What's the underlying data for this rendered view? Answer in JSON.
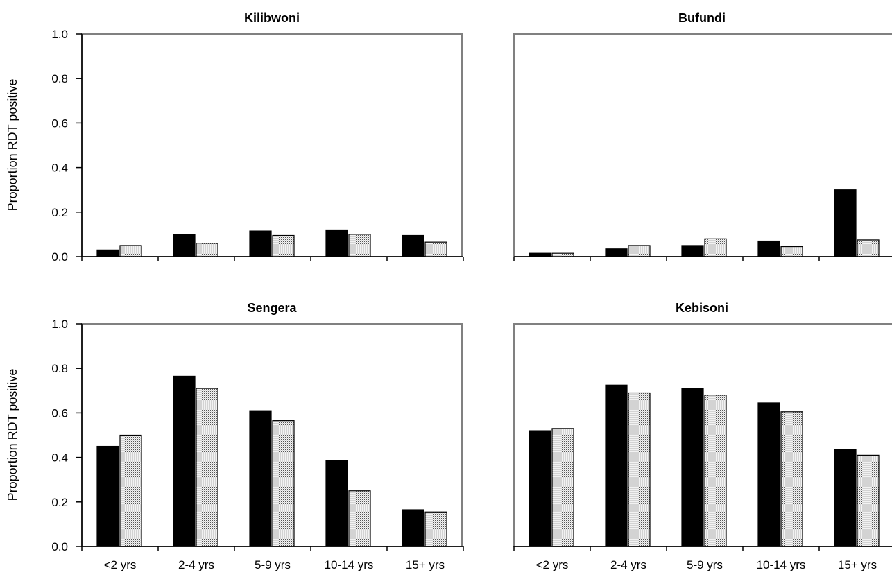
{
  "chart_data": [
    {
      "type": "bar",
      "title": "Kilibwoni",
      "ylabel": "Proportion RDT positive",
      "xlabel": "",
      "ylim": [
        0,
        1.0
      ],
      "yticks": [
        "0.0",
        "0.2",
        "0.4",
        "0.6",
        "0.8",
        "1.0"
      ],
      "categories": [
        "<2 yrs",
        "2-4 yrs",
        "5-9 yrs",
        "10-14 yrs",
        "15+ yrs"
      ],
      "show_x_tick_labels": false,
      "show_y_axis": true,
      "series": [
        {
          "values": [
            0.03,
            0.1,
            0.115,
            0.12,
            0.095
          ],
          "fill": "#000000"
        },
        {
          "values": [
            0.05,
            0.06,
            0.095,
            0.1,
            0.065
          ],
          "fill": "dots"
        }
      ]
    },
    {
      "type": "bar",
      "title": "Bufundi",
      "ylabel": "",
      "xlabel": "",
      "ylim": [
        0,
        1.0
      ],
      "categories": [
        "<2 yrs",
        "2-4 yrs",
        "5-9 yrs",
        "10-14 yrs",
        "15+ yrs"
      ],
      "show_x_tick_labels": false,
      "show_y_axis": false,
      "series": [
        {
          "values": [
            0.015,
            0.035,
            0.05,
            0.07,
            0.3
          ],
          "fill": "#000000"
        },
        {
          "values": [
            0.015,
            0.05,
            0.08,
            0.045,
            0.075
          ],
          "fill": "dots"
        }
      ]
    },
    {
      "type": "bar",
      "title": "Sengera",
      "ylabel": "Proportion RDT positive",
      "xlabel": "",
      "ylim": [
        0,
        1.0
      ],
      "yticks": [
        "0.0",
        "0.2",
        "0.4",
        "0.6",
        "0.8",
        "1.0"
      ],
      "categories": [
        "<2 yrs",
        "2-4 yrs",
        "5-9 yrs",
        "10-14 yrs",
        "15+ yrs"
      ],
      "show_x_tick_labels": true,
      "show_y_axis": true,
      "series": [
        {
          "values": [
            0.45,
            0.765,
            0.61,
            0.385,
            0.165
          ],
          "fill": "#000000"
        },
        {
          "values": [
            0.5,
            0.71,
            0.565,
            0.25,
            0.155
          ],
          "fill": "dots"
        }
      ]
    },
    {
      "type": "bar",
      "title": "Kebisoni",
      "ylabel": "",
      "xlabel": "",
      "ylim": [
        0,
        1.0
      ],
      "categories": [
        "<2 yrs",
        "2-4 yrs",
        "5-9 yrs",
        "10-14 yrs",
        "15+ yrs"
      ],
      "show_x_tick_labels": true,
      "show_y_axis": false,
      "series": [
        {
          "values": [
            0.52,
            0.725,
            0.71,
            0.645,
            0.435
          ],
          "fill": "#000000"
        },
        {
          "values": [
            0.53,
            0.69,
            0.68,
            0.605,
            0.41
          ],
          "fill": "dots"
        }
      ]
    }
  ],
  "colors": {
    "series1": "#000000",
    "series2_pattern": "dots",
    "frame": "#808080",
    "axis": "#000000"
  }
}
